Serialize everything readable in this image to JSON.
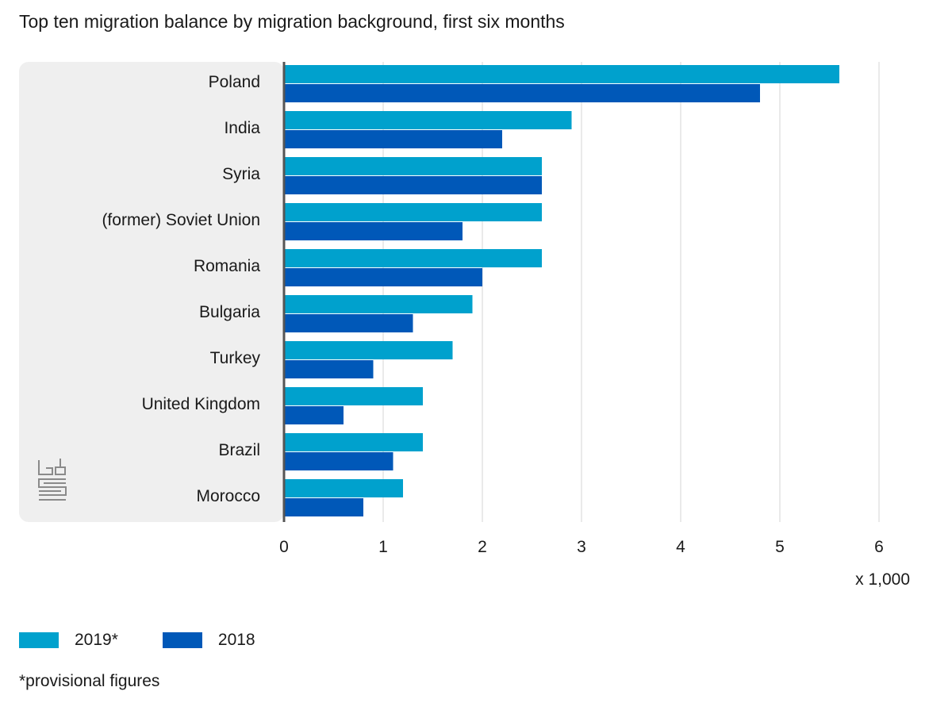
{
  "chart_data": {
    "type": "bar",
    "orientation": "horizontal",
    "title": "Top ten migration balance by migration background, first six months",
    "categories": [
      "Poland",
      "India",
      "Syria",
      "(former) Soviet Union",
      "Romania",
      "Bulgaria",
      "Turkey",
      "United Kingdom",
      "Brazil",
      "Morocco"
    ],
    "series": [
      {
        "name": "2019*",
        "color": "#00a1cd",
        "values": [
          5.6,
          2.9,
          2.6,
          2.6,
          2.6,
          1.9,
          1.7,
          1.4,
          1.4,
          1.2
        ]
      },
      {
        "name": "2018",
        "color": "#0058b8",
        "values": [
          4.8,
          2.2,
          2.6,
          1.8,
          2.0,
          1.3,
          0.9,
          0.6,
          1.1,
          0.8
        ]
      }
    ],
    "xlim": [
      0,
      6
    ],
    "xticks": [
      "0",
      "1",
      "2",
      "3",
      "4",
      "5",
      "6"
    ],
    "x_unit_label": "x 1,000",
    "grid": "vertical",
    "legend_position": "bottom-left"
  },
  "footnote": "*provisional figures",
  "logo": "cbs"
}
